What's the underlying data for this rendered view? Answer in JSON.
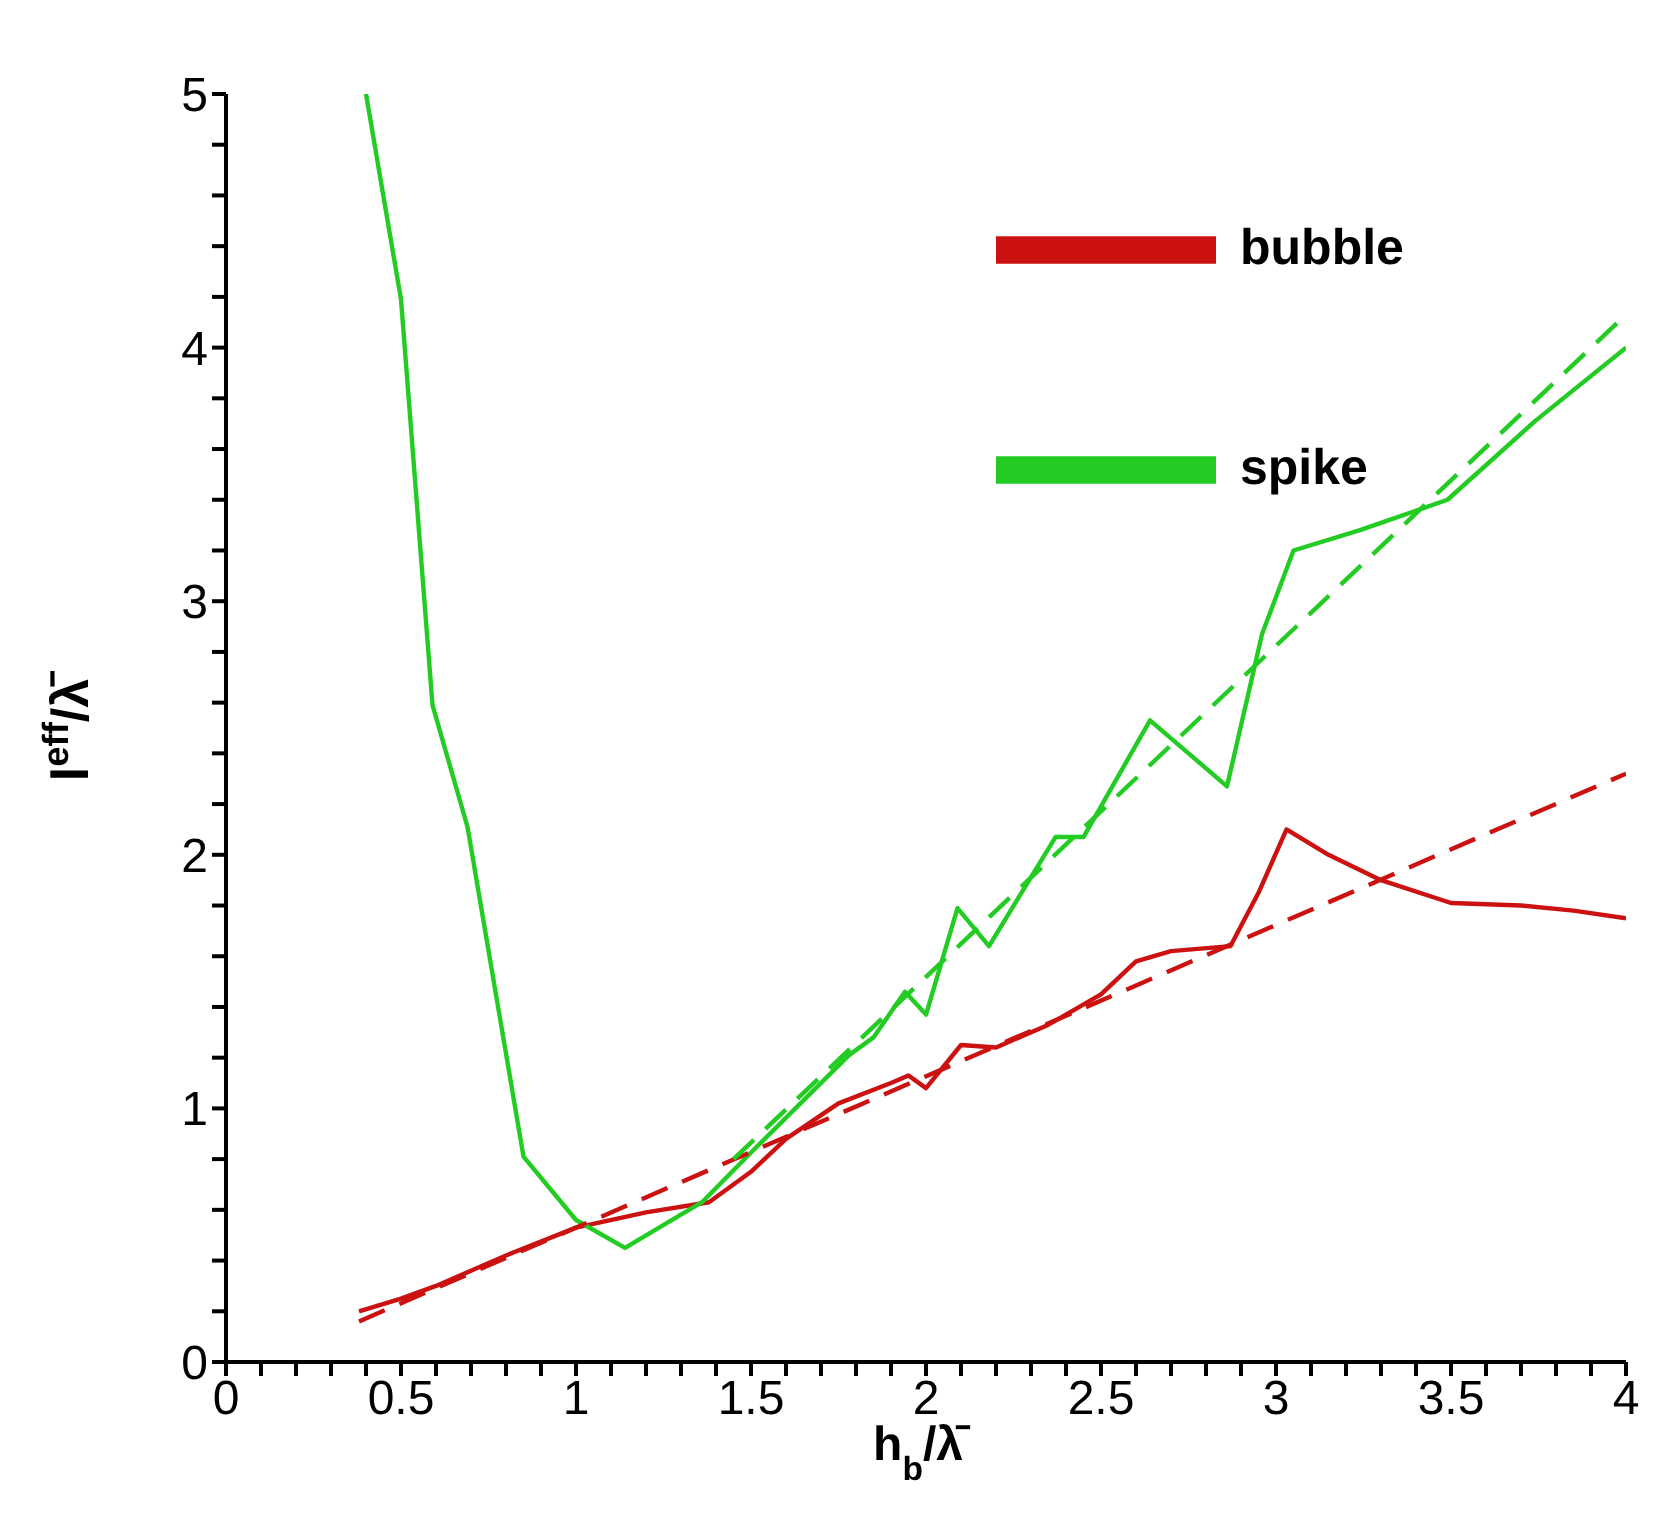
{
  "chart_data": {
    "type": "line",
    "xlabel": "h$_{b}$/λ̄",
    "ylabel": "l$^{eff}$/λ̄",
    "xlim": [
      0,
      4
    ],
    "ylim": [
      0,
      5
    ],
    "xticks": [
      0,
      {
        "value": 0.1,
        "label": null
      },
      {
        "value": 0.2,
        "label": null
      },
      {
        "value": 0.3,
        "label": null
      },
      {
        "value": 0.4,
        "label": null
      },
      0.5,
      {
        "value": 0.6,
        "label": null
      },
      {
        "value": 0.7,
        "label": null
      },
      {
        "value": 0.8,
        "label": null
      },
      {
        "value": 0.9,
        "label": null
      },
      1,
      {
        "value": 1.1,
        "label": null
      },
      {
        "value": 1.2,
        "label": null
      },
      {
        "value": 1.3,
        "label": null
      },
      {
        "value": 1.4,
        "label": null
      },
      1.5,
      {
        "value": 1.6,
        "label": null
      },
      {
        "value": 1.7,
        "label": null
      },
      {
        "value": 1.8,
        "label": null
      },
      {
        "value": 1.9,
        "label": null
      },
      2,
      {
        "value": 2.1,
        "label": null
      },
      {
        "value": 2.2,
        "label": null
      },
      {
        "value": 2.3,
        "label": null
      },
      {
        "value": 2.4,
        "label": null
      },
      2.5,
      {
        "value": 2.6,
        "label": null
      },
      {
        "value": 2.7,
        "label": null
      },
      {
        "value": 2.8,
        "label": null
      },
      {
        "value": 2.9,
        "label": null
      },
      3,
      {
        "value": 3.1,
        "label": null
      },
      {
        "value": 3.2,
        "label": null
      },
      {
        "value": 3.3,
        "label": null
      },
      {
        "value": 3.4,
        "label": null
      },
      3.5,
      {
        "value": 3.6,
        "label": null
      },
      {
        "value": 3.7,
        "label": null
      },
      {
        "value": 3.8,
        "label": null
      },
      {
        "value": 3.9,
        "label": null
      },
      4
    ],
    "yticks": [
      0,
      {
        "value": 0.2,
        "label": null
      },
      {
        "value": 0.4,
        "label": null
      },
      {
        "value": 0.6,
        "label": null
      },
      {
        "value": 0.8,
        "label": null
      },
      1,
      {
        "value": 1.2,
        "label": null
      },
      {
        "value": 1.4,
        "label": null
      },
      {
        "value": 1.6,
        "label": null
      },
      {
        "value": 1.8,
        "label": null
      },
      2,
      {
        "value": 2.2,
        "label": null
      },
      {
        "value": 2.4,
        "label": null
      },
      {
        "value": 2.6,
        "label": null
      },
      {
        "value": 2.8,
        "label": null
      },
      3,
      {
        "value": 3.2,
        "label": null
      },
      {
        "value": 3.4,
        "label": null
      },
      {
        "value": 3.6,
        "label": null
      },
      {
        "value": 3.8,
        "label": null
      },
      4,
      {
        "value": 4.2,
        "label": null
      },
      {
        "value": 4.4,
        "label": null
      },
      {
        "value": 4.6,
        "label": null
      },
      {
        "value": 4.8,
        "label": null
      },
      5
    ],
    "grid": false,
    "legend": "top right",
    "marker": "none",
    "series": [
      {
        "name": "bubble",
        "color": "#cc1111",
        "line_style": "solid",
        "x": [
          0.38,
          0.5,
          0.6,
          0.8,
          1.0,
          1.2,
          1.38,
          1.5,
          1.6,
          1.75,
          1.9,
          1.95,
          2.0,
          2.1,
          2.2,
          2.35,
          2.5,
          2.6,
          2.7,
          2.87,
          2.95,
          3.03,
          3.15,
          3.3,
          3.5,
          3.7,
          3.85,
          4.0
        ],
        "values": [
          0.2,
          0.25,
          0.3,
          0.42,
          0.53,
          0.59,
          0.63,
          0.75,
          0.88,
          1.02,
          1.1,
          1.13,
          1.08,
          1.25,
          1.24,
          1.33,
          1.45,
          1.58,
          1.62,
          1.64,
          1.85,
          2.1,
          2.0,
          1.9,
          1.81,
          1.8,
          1.78,
          1.75
        ]
      },
      {
        "name": "spike",
        "color": "#22cc22",
        "line_style": "solid",
        "x": [
          0.4,
          0.5,
          0.59,
          0.69,
          0.85,
          1.0,
          1.14,
          1.36,
          1.51,
          1.78,
          1.85,
          1.94,
          2.0,
          2.09,
          2.18,
          2.37,
          2.45,
          2.64,
          2.86,
          2.96,
          3.05,
          3.24,
          3.49,
          3.74,
          4.0
        ],
        "values": [
          5.0,
          4.19,
          2.59,
          2.11,
          0.81,
          0.56,
          0.45,
          0.63,
          0.84,
          1.21,
          1.28,
          1.46,
          1.37,
          1.79,
          1.64,
          2.07,
          2.07,
          2.53,
          2.27,
          2.87,
          3.2,
          3.28,
          3.4,
          3.71,
          4.0
        ]
      },
      {
        "type": "line",
        "color": "#cc1111",
        "line_style": "dashed",
        "x": [
          0.38,
          4.0
        ],
        "values": [
          0.16,
          2.32
        ]
      },
      {
        "type": "line",
        "color": "#22cc22",
        "line_style": "dashed",
        "x": [
          1.45,
          4.0
        ],
        "values": [
          0.8,
          4.13
        ]
      }
    ]
  }
}
